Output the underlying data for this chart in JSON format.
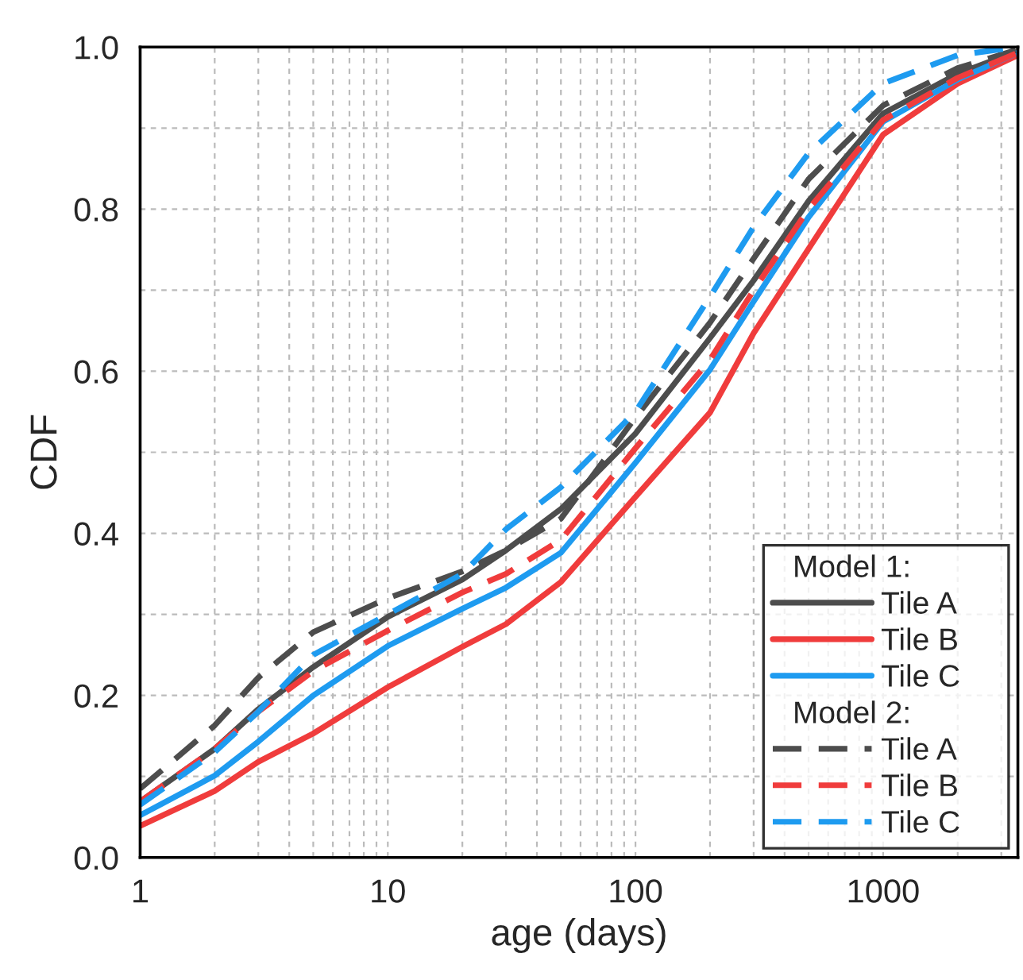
{
  "chart_data": {
    "type": "line",
    "xlabel": "age (days)",
    "ylabel": "CDF",
    "log": "x",
    "grid": true,
    "legend": "bottom right",
    "legend_title": [
      "Model 1:",
      "Model 2:"
    ],
    "xlim": [
      1,
      3500
    ],
    "xticks": [
      1,
      10,
      100,
      1000
    ],
    "ylim": [
      0,
      1
    ],
    "yticks": [
      {
        "value": 0,
        "label": "0.0"
      },
      {
        "value": 0.2,
        "label": "0.2"
      },
      {
        "value": 0.4,
        "label": "0.4"
      },
      {
        "value": 0.6,
        "label": "0.6"
      },
      {
        "value": 0.8,
        "label": "0.8"
      },
      {
        "value": 1,
        "label": "1.0"
      }
    ],
    "x": [
      1,
      2,
      3,
      5,
      10,
      20,
      30,
      50,
      100,
      200,
      300,
      500,
      1000,
      2000,
      3500
    ],
    "series": [
      {
        "name": "Tile A",
        "color": "#4d4d4d",
        "line_style": "solid",
        "values": [
          0.069,
          0.134,
          0.183,
          0.235,
          0.297,
          0.343,
          0.379,
          0.43,
          0.523,
          0.641,
          0.712,
          0.81,
          0.918,
          0.967,
          0.995
        ]
      },
      {
        "name": "Tile B",
        "color": "#f03c3c",
        "line_style": "solid",
        "values": [
          0.039,
          0.082,
          0.118,
          0.153,
          0.21,
          0.26,
          0.288,
          0.34,
          0.445,
          0.549,
          0.647,
          0.751,
          0.892,
          0.955,
          0.99
        ]
      },
      {
        "name": "Tile C",
        "color": "#1e9bf0",
        "line_style": "solid",
        "values": [
          0.052,
          0.101,
          0.143,
          0.2,
          0.261,
          0.307,
          0.333,
          0.376,
          0.487,
          0.602,
          0.686,
          0.79,
          0.908,
          0.96,
          0.993
        ]
      },
      {
        "name": "Tile A",
        "color": "#4d4d4d",
        "line_style": "dashed",
        "values": [
          0.085,
          0.163,
          0.222,
          0.278,
          0.32,
          0.353,
          0.379,
          0.418,
          0.543,
          0.66,
          0.739,
          0.837,
          0.928,
          0.974,
          0.997
        ]
      },
      {
        "name": "Tile B",
        "color": "#f03c3c",
        "line_style": "dashed",
        "values": [
          0.069,
          0.134,
          0.18,
          0.23,
          0.28,
          0.327,
          0.35,
          0.392,
          0.505,
          0.614,
          0.7,
          0.8,
          0.91,
          0.962,
          0.993
        ]
      },
      {
        "name": "Tile C",
        "color": "#1e9bf0",
        "line_style": "dashed",
        "values": [
          0.065,
          0.13,
          0.18,
          0.25,
          0.3,
          0.35,
          0.405,
          0.457,
          0.55,
          0.692,
          0.778,
          0.869,
          0.955,
          0.99,
          1.0
        ]
      }
    ]
  }
}
